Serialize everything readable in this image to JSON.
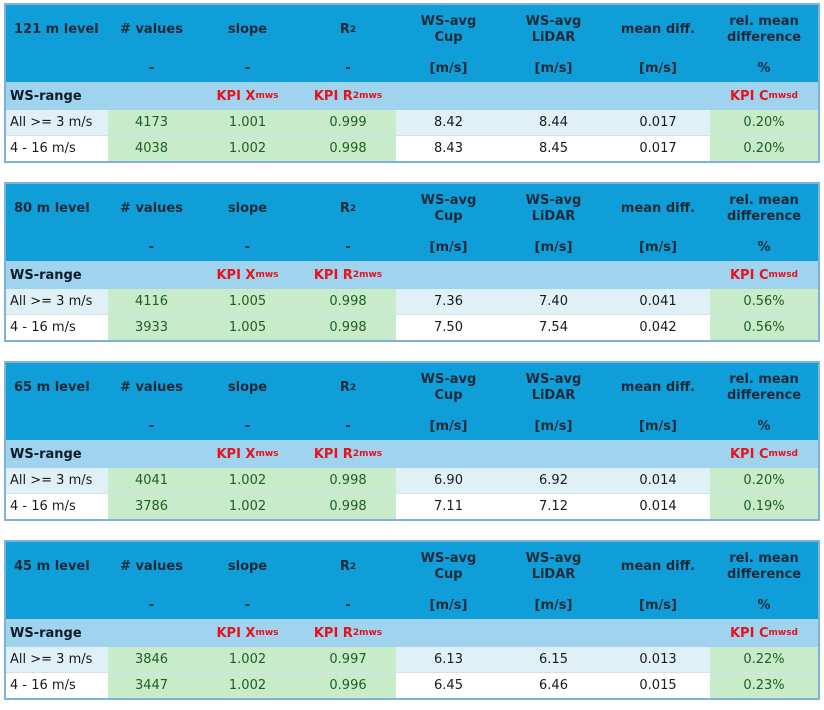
{
  "header": {
    "values": "# values",
    "slope": "slope",
    "r2_base": "R",
    "r2_sup": "2",
    "wsavg_cup_1": "WS-avg",
    "wsavg_cup_2": "Cup",
    "wsavg_lidar_1": "WS-avg",
    "wsavg_lidar_2": "LiDAR",
    "mean_diff": "mean diff.",
    "rel_mean_1": "rel. mean",
    "rel_mean_2": "difference",
    "unit_dash": "-",
    "unit_ms": "[m/s]",
    "unit_pct": "%"
  },
  "kpi": {
    "ws_range": "WS-range",
    "kpi_x_base": "KPI X",
    "kpi_x_sub": "mws",
    "kpi_r_base": "KPI R",
    "kpi_r_sup": "2",
    "kpi_r_sub": "mws",
    "kpi_c_base": "KPI C",
    "kpi_c_sub": "mwsd"
  },
  "tables": [
    {
      "level": "121 m level",
      "rows": [
        {
          "range": "All >= 3 m/s",
          "n": "4173",
          "slope": "1.001",
          "r2": "0.999",
          "cup": "8.42",
          "lidar": "8.44",
          "diff": "0.017",
          "rel": "0.20%"
        },
        {
          "range": "4 - 16 m/s",
          "n": "4038",
          "slope": "1.002",
          "r2": "0.998",
          "cup": "8.43",
          "lidar": "8.45",
          "diff": "0.017",
          "rel": "0.20%"
        }
      ]
    },
    {
      "level": "80 m level",
      "rows": [
        {
          "range": "All >= 3 m/s",
          "n": "4116",
          "slope": "1.005",
          "r2": "0.998",
          "cup": "7.36",
          "lidar": "7.40",
          "diff": "0.041",
          "rel": "0.56%"
        },
        {
          "range": "4 - 16 m/s",
          "n": "3933",
          "slope": "1.005",
          "r2": "0.998",
          "cup": "7.50",
          "lidar": "7.54",
          "diff": "0.042",
          "rel": "0.56%"
        }
      ]
    },
    {
      "level": "65 m level",
      "rows": [
        {
          "range": "All >= 3 m/s",
          "n": "4041",
          "slope": "1.002",
          "r2": "0.998",
          "cup": "6.90",
          "lidar": "6.92",
          "diff": "0.014",
          "rel": "0.20%"
        },
        {
          "range": "4 - 16 m/s",
          "n": "3786",
          "slope": "1.002",
          "r2": "0.998",
          "cup": "7.11",
          "lidar": "7.12",
          "diff": "0.014",
          "rel": "0.19%"
        }
      ]
    },
    {
      "level": "45 m level",
      "rows": [
        {
          "range": "All >= 3 m/s",
          "n": "3846",
          "slope": "1.002",
          "r2": "0.997",
          "cup": "6.13",
          "lidar": "6.15",
          "diff": "0.013",
          "rel": "0.22%"
        },
        {
          "range": "4 - 16 m/s",
          "n": "3447",
          "slope": "1.002",
          "r2": "0.996",
          "cup": "6.45",
          "lidar": "6.46",
          "diff": "0.015",
          "rel": "0.23%"
        }
      ]
    }
  ]
}
